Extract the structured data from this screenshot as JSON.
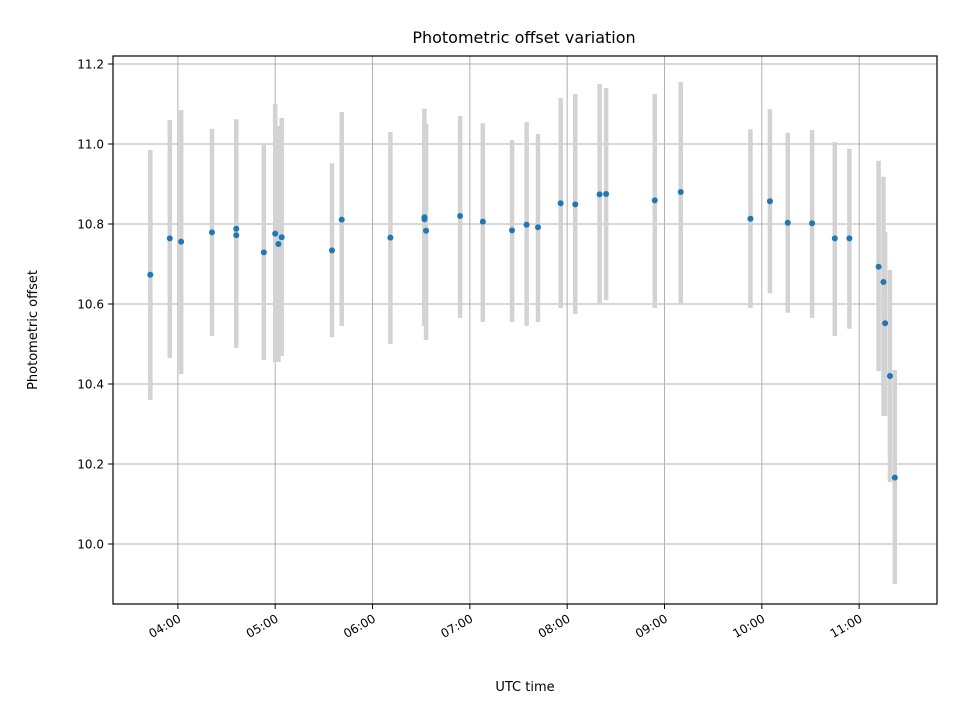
{
  "chart_data": {
    "type": "scatter",
    "title": "Photometric offset variation",
    "xlabel": "UTC time",
    "ylabel": "Photometric offset",
    "x_unit": "hours UTC",
    "xlim": [
      "03:20",
      "11:48"
    ],
    "ylim": [
      9.85,
      11.22
    ],
    "x_ticks": [
      "04:00",
      "05:00",
      "06:00",
      "07:00",
      "08:00",
      "09:00",
      "10:00",
      "11:00"
    ],
    "y_ticks": [
      "10.0",
      "10.2",
      "10.4",
      "10.6",
      "10.8",
      "11.0",
      "11.2"
    ],
    "grid": true,
    "colors": {
      "points": "#1f77b4",
      "error_bars": "#d3d3d3",
      "grid": "#b0b0b0"
    },
    "series": [
      {
        "points": [
          {
            "t": "03:43",
            "y": 10.673,
            "lo": 10.36,
            "hi": 10.985
          },
          {
            "t": "03:55",
            "y": 10.764,
            "lo": 10.465,
            "hi": 11.06
          },
          {
            "t": "04:02",
            "y": 10.756,
            "lo": 10.425,
            "hi": 11.085
          },
          {
            "t": "04:21",
            "y": 10.779,
            "lo": 10.52,
            "hi": 11.038
          },
          {
            "t": "04:36",
            "y": 10.788,
            "lo": 10.49,
            "hi": 11.062
          },
          {
            "t": "04:36",
            "y": 10.772,
            "lo": 10.49,
            "hi": 11.052
          },
          {
            "t": "04:53",
            "y": 10.729,
            "lo": 10.46,
            "hi": 11.0
          },
          {
            "t": "05:00",
            "y": 10.776,
            "lo": 10.455,
            "hi": 11.1
          },
          {
            "t": "05:02",
            "y": 10.75,
            "lo": 10.455,
            "hi": 11.045
          },
          {
            "t": "05:04",
            "y": 10.767,
            "lo": 10.47,
            "hi": 11.065
          },
          {
            "t": "05:35",
            "y": 10.734,
            "lo": 10.517,
            "hi": 10.952
          },
          {
            "t": "05:41",
            "y": 10.811,
            "lo": 10.545,
            "hi": 11.08
          },
          {
            "t": "06:11",
            "y": 10.766,
            "lo": 10.5,
            "hi": 11.03
          },
          {
            "t": "06:32",
            "y": 10.817,
            "lo": 10.545,
            "hi": 11.088
          },
          {
            "t": "06:32",
            "y": 10.812,
            "lo": 10.545,
            "hi": 11.05
          },
          {
            "t": "06:33",
            "y": 10.783,
            "lo": 10.51,
            "hi": 11.05
          },
          {
            "t": "06:54",
            "y": 10.82,
            "lo": 10.565,
            "hi": 11.07
          },
          {
            "t": "07:08",
            "y": 10.806,
            "lo": 10.555,
            "hi": 11.052
          },
          {
            "t": "07:26",
            "y": 10.784,
            "lo": 10.555,
            "hi": 11.01
          },
          {
            "t": "07:35",
            "y": 10.798,
            "lo": 10.545,
            "hi": 11.055
          },
          {
            "t": "07:42",
            "y": 10.792,
            "lo": 10.555,
            "hi": 11.025
          },
          {
            "t": "07:56",
            "y": 10.852,
            "lo": 10.59,
            "hi": 11.115
          },
          {
            "t": "08:05",
            "y": 10.849,
            "lo": 10.575,
            "hi": 11.125
          },
          {
            "t": "08:20",
            "y": 10.874,
            "lo": 10.6,
            "hi": 11.15
          },
          {
            "t": "08:24",
            "y": 10.875,
            "lo": 10.61,
            "hi": 11.14
          },
          {
            "t": "08:54",
            "y": 10.859,
            "lo": 10.59,
            "hi": 11.125
          },
          {
            "t": "09:10",
            "y": 10.88,
            "lo": 10.6,
            "hi": 11.155
          },
          {
            "t": "09:53",
            "y": 10.813,
            "lo": 10.59,
            "hi": 11.037
          },
          {
            "t": "10:05",
            "y": 10.857,
            "lo": 10.627,
            "hi": 11.087
          },
          {
            "t": "10:16",
            "y": 10.803,
            "lo": 10.578,
            "hi": 11.028
          },
          {
            "t": "10:31",
            "y": 10.802,
            "lo": 10.565,
            "hi": 11.035
          },
          {
            "t": "10:45",
            "y": 10.764,
            "lo": 10.52,
            "hi": 11.005
          },
          {
            "t": "10:54",
            "y": 10.764,
            "lo": 10.538,
            "hi": 10.988
          },
          {
            "t": "11:12",
            "y": 10.693,
            "lo": 10.432,
            "hi": 10.958
          },
          {
            "t": "11:15",
            "y": 10.655,
            "lo": 10.32,
            "hi": 10.918
          },
          {
            "t": "11:16",
            "y": 10.552,
            "lo": 10.32,
            "hi": 10.78
          },
          {
            "t": "11:19",
            "y": 10.42,
            "lo": 10.155,
            "hi": 10.685
          },
          {
            "t": "11:22",
            "y": 10.166,
            "lo": 9.9,
            "hi": 10.435
          }
        ]
      }
    ]
  }
}
